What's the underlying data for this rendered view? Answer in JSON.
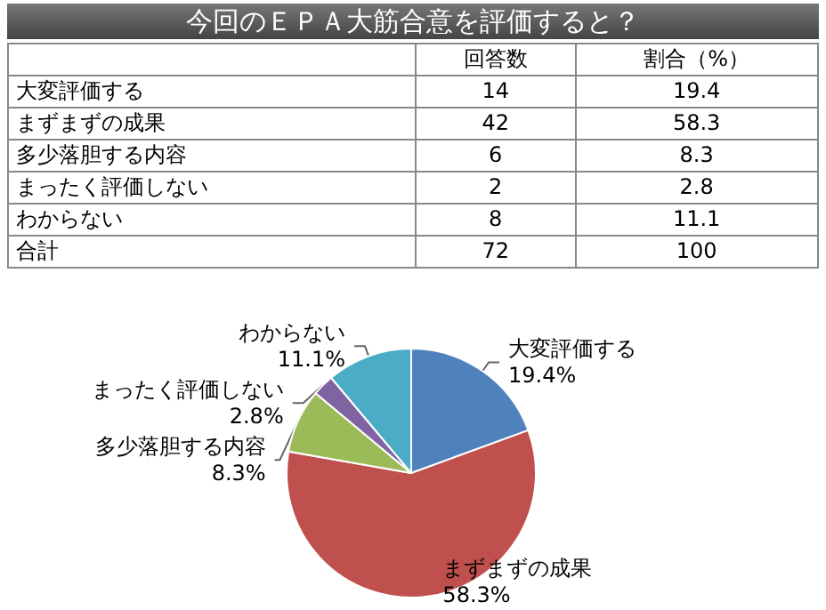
{
  "chart_data": [
    {
      "type": "other",
      "title": "今回のＥＰＡ大筋合意を評価すると？",
      "categories": [
        "大変評価する",
        "まずまずの成果",
        "多少落胆する内容",
        "まったく評価しない",
        "わからない",
        "合計"
      ],
      "series": [
        {
          "name": "回答数",
          "values": [
            14,
            42,
            6,
            2,
            8,
            72
          ]
        },
        {
          "name": "割合（%）",
          "values": [
            19.4,
            58.3,
            8.3,
            2.8,
            11.1,
            100
          ]
        }
      ],
      "data_labels": true
    },
    {
      "type": "pie",
      "categories": [
        "大変評価する",
        "まずまずの成果",
        "多少落胆する内容",
        "まったく評価しない",
        "わからない"
      ],
      "values": [
        19.4,
        58.3,
        8.3,
        2.8,
        11.1
      ],
      "colors": [
        "#4f81bd",
        "#c0504d",
        "#9bbb59",
        "#8064a2",
        "#4bacc6"
      ],
      "value_labels": [
        "19.4%",
        "58.3%",
        "8.3%",
        "2.8%",
        "11.1%"
      ]
    }
  ]
}
